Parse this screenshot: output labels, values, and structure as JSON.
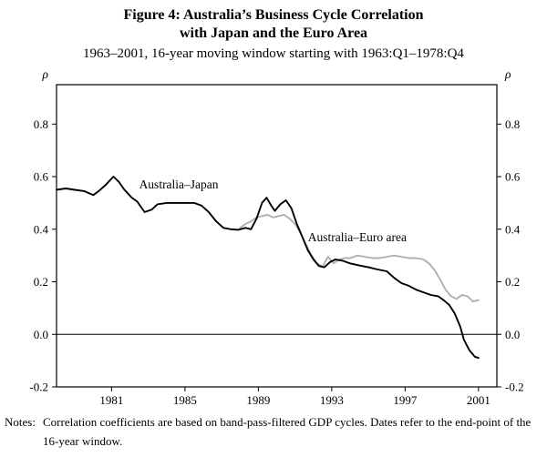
{
  "figure": {
    "title_line1": "Figure 4: Australia’s Business Cycle Correlation",
    "title_line2": "with Japan and the Euro Area",
    "subtitle": "1963–2001, 16-year moving window starting with 1963:Q1–1978:Q4",
    "notes_label": "Notes:",
    "notes_text": "Correlation coefficients are based on band-pass-filtered GDP cycles. Dates refer to the end-point of the 16-year window."
  },
  "chart_data": {
    "type": "line",
    "title": "Australia’s Business Cycle Correlation with Japan and the Euro Area",
    "xlabel": "",
    "ylabel_left": "ρ",
    "ylabel_right": "ρ",
    "xlim": [
      1978,
      2002
    ],
    "ylim": [
      -0.2,
      0.95
    ],
    "xticks": [
      1981,
      1985,
      1989,
      1993,
      1997,
      2001
    ],
    "yticks": [
      -0.2,
      0.0,
      0.2,
      0.4,
      0.6,
      0.8
    ],
    "grid": false,
    "zero_line": true,
    "legend_position": "inline-labels",
    "frame_color": "#000000",
    "series": [
      {
        "id": "australia-japan",
        "name": "Australia–Japan",
        "color": "#000000",
        "label_pos": {
          "x": 1982.5,
          "y": 0.555
        },
        "points": [
          [
            1978.0,
            0.55
          ],
          [
            1978.5,
            0.555
          ],
          [
            1979.0,
            0.55
          ],
          [
            1979.5,
            0.545
          ],
          [
            1980.0,
            0.53
          ],
          [
            1980.3,
            0.545
          ],
          [
            1980.7,
            0.57
          ],
          [
            1981.1,
            0.6
          ],
          [
            1981.4,
            0.58
          ],
          [
            1981.7,
            0.55
          ],
          [
            1982.1,
            0.52
          ],
          [
            1982.4,
            0.505
          ],
          [
            1982.8,
            0.465
          ],
          [
            1983.2,
            0.475
          ],
          [
            1983.5,
            0.495
          ],
          [
            1984.0,
            0.5
          ],
          [
            1984.5,
            0.5
          ],
          [
            1985.0,
            0.5
          ],
          [
            1985.5,
            0.5
          ],
          [
            1985.9,
            0.49
          ],
          [
            1986.3,
            0.465
          ],
          [
            1986.7,
            0.43
          ],
          [
            1987.1,
            0.405
          ],
          [
            1987.5,
            0.4
          ],
          [
            1987.9,
            0.398
          ],
          [
            1988.3,
            0.405
          ],
          [
            1988.6,
            0.4
          ],
          [
            1988.9,
            0.44
          ],
          [
            1989.2,
            0.5
          ],
          [
            1989.45,
            0.52
          ],
          [
            1989.7,
            0.49
          ],
          [
            1989.9,
            0.47
          ],
          [
            1990.2,
            0.495
          ],
          [
            1990.5,
            0.51
          ],
          [
            1990.8,
            0.48
          ],
          [
            1991.1,
            0.42
          ],
          [
            1991.4,
            0.37
          ],
          [
            1991.7,
            0.32
          ],
          [
            1992.0,
            0.285
          ],
          [
            1992.3,
            0.26
          ],
          [
            1992.6,
            0.255
          ],
          [
            1992.9,
            0.275
          ],
          [
            1993.2,
            0.285
          ],
          [
            1993.6,
            0.28
          ],
          [
            1994.0,
            0.27
          ],
          [
            1994.5,
            0.262
          ],
          [
            1995.0,
            0.255
          ],
          [
            1995.5,
            0.247
          ],
          [
            1996.0,
            0.24
          ],
          [
            1996.4,
            0.215
          ],
          [
            1996.8,
            0.195
          ],
          [
            1997.2,
            0.185
          ],
          [
            1997.6,
            0.17
          ],
          [
            1998.0,
            0.16
          ],
          [
            1998.4,
            0.15
          ],
          [
            1998.8,
            0.145
          ],
          [
            1999.1,
            0.13
          ],
          [
            1999.4,
            0.112
          ],
          [
            1999.7,
            0.08
          ],
          [
            2000.0,
            0.03
          ],
          [
            2000.2,
            -0.02
          ],
          [
            2000.5,
            -0.06
          ],
          [
            2000.8,
            -0.085
          ],
          [
            2001.0,
            -0.09
          ]
        ]
      },
      {
        "id": "australia-euro-area",
        "name": "Australia–Euro area",
        "color": "#b0b0b0",
        "label_pos": {
          "x": 1991.7,
          "y": 0.355
        },
        "points": [
          [
            1988.0,
            0.405
          ],
          [
            1988.3,
            0.42
          ],
          [
            1988.6,
            0.43
          ],
          [
            1988.9,
            0.445
          ],
          [
            1989.2,
            0.45
          ],
          [
            1989.5,
            0.455
          ],
          [
            1989.8,
            0.445
          ],
          [
            1990.1,
            0.45
          ],
          [
            1990.4,
            0.455
          ],
          [
            1990.7,
            0.44
          ],
          [
            1991.0,
            0.42
          ],
          [
            1991.3,
            0.385
          ],
          [
            1991.6,
            0.34
          ],
          [
            1991.9,
            0.3
          ],
          [
            1992.2,
            0.27
          ],
          [
            1992.5,
            0.258
          ],
          [
            1992.8,
            0.295
          ],
          [
            1993.1,
            0.27
          ],
          [
            1993.4,
            0.285
          ],
          [
            1993.7,
            0.29
          ],
          [
            1994.0,
            0.29
          ],
          [
            1994.4,
            0.3
          ],
          [
            1994.8,
            0.295
          ],
          [
            1995.2,
            0.29
          ],
          [
            1995.6,
            0.29
          ],
          [
            1996.0,
            0.295
          ],
          [
            1996.4,
            0.3
          ],
          [
            1996.8,
            0.295
          ],
          [
            1997.2,
            0.29
          ],
          [
            1997.6,
            0.29
          ],
          [
            1998.0,
            0.285
          ],
          [
            1998.3,
            0.27
          ],
          [
            1998.6,
            0.245
          ],
          [
            1998.9,
            0.21
          ],
          [
            1999.2,
            0.17
          ],
          [
            1999.5,
            0.145
          ],
          [
            1999.8,
            0.135
          ],
          [
            2000.1,
            0.15
          ],
          [
            2000.4,
            0.145
          ],
          [
            2000.7,
            0.125
          ],
          [
            2001.0,
            0.13
          ]
        ]
      }
    ]
  }
}
